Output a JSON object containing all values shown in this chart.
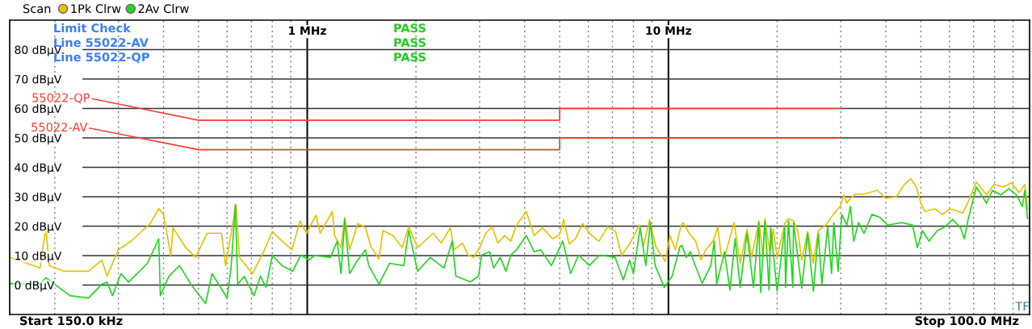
{
  "chart_data": {
    "type": "line",
    "legend_title": "Scan",
    "legend": "top left",
    "grid": true,
    "log": "x",
    "xlim": [
      0.15,
      100
    ],
    "ylim": [
      -10,
      90
    ],
    "xticks": [
      {
        "value": 0.2,
        "label": null
      },
      {
        "value": 0.3,
        "label": null
      },
      {
        "value": 0.4,
        "label": null
      },
      {
        "value": 0.5,
        "label": null
      },
      {
        "value": 0.6,
        "label": null
      },
      {
        "value": 0.7,
        "label": null
      },
      {
        "value": 0.8,
        "label": null
      },
      {
        "value": 0.9,
        "label": null
      },
      {
        "value": 1,
        "label": "1 MHz"
      },
      {
        "value": 2,
        "label": null
      },
      {
        "value": 3,
        "label": null
      },
      {
        "value": 4,
        "label": null
      },
      {
        "value": 5,
        "label": null
      },
      {
        "value": 6,
        "label": null
      },
      {
        "value": 7,
        "label": null
      },
      {
        "value": 8,
        "label": null
      },
      {
        "value": 9,
        "label": null
      },
      {
        "value": 10,
        "label": "10 MHz"
      },
      {
        "value": 20,
        "label": null
      },
      {
        "value": 30,
        "label": null
      },
      {
        "value": 40,
        "label": null
      },
      {
        "value": 50,
        "label": null
      },
      {
        "value": 60,
        "label": null
      },
      {
        "value": 70,
        "label": null
      },
      {
        "value": 80,
        "label": null
      },
      {
        "value": 90,
        "label": null
      }
    ],
    "yticks": [
      {
        "value": 0,
        "label": "0 dBµV"
      },
      {
        "value": 10,
        "label": "10 dBµV"
      },
      {
        "value": 20,
        "label": "20 dBµV"
      },
      {
        "value": 30,
        "label": "30 dBµV"
      },
      {
        "value": 40,
        "label": "40 dBµV"
      },
      {
        "value": 50,
        "label": "50 dBµV"
      },
      {
        "value": 60,
        "label": "60 dBµV"
      },
      {
        "value": 70,
        "label": "70 dBµV"
      },
      {
        "value": 80,
        "label": "80 dBµV"
      }
    ],
    "series": [
      {
        "name": "1Pk Clrw",
        "color": "#e6c300",
        "x": [
          0.15,
          0.182,
          0.189,
          0.193,
          0.212,
          0.248,
          0.27,
          0.279,
          0.3,
          0.326,
          0.368,
          0.388,
          0.4,
          0.419,
          0.425,
          0.459,
          0.491,
          0.528,
          0.579,
          0.594,
          0.635,
          0.649,
          0.705,
          0.757,
          0.8,
          0.852,
          0.907,
          0.955,
          0.995,
          1.058,
          1.086,
          1.173,
          1.191,
          1.24,
          1.27,
          1.31,
          1.38,
          1.45,
          1.5,
          1.58,
          1.62,
          1.73,
          1.83,
          1.91,
          2.02,
          2.23,
          2.35,
          2.49,
          2.55,
          2.69,
          2.79,
          2.89,
          3.01,
          3.12,
          3.25,
          3.37,
          3.52,
          3.66,
          3.8,
          4.04,
          4.25,
          4.48,
          4.78,
          5.0,
          5.13,
          5.31,
          5.53,
          5.79,
          6.04,
          6.42,
          6.79,
          7.14,
          7.42,
          7.81,
          8.31,
          8.52,
          8.87,
          9.23,
          9.8,
          10.1,
          10.45,
          10.85,
          11.0,
          11.4,
          11.9,
          12.3,
          12.7,
          13.3,
          13.7,
          14.0,
          14.3,
          15.2,
          15.8,
          16.5,
          17.0,
          17.8,
          18.3,
          18.5,
          19.1,
          19.5,
          20.0,
          21.0,
          21.5,
          22.2,
          22.8,
          23.4,
          24.3,
          25.2,
          26.0,
          27.3,
          28.6,
          29.9,
          30.6,
          31.2,
          31.9,
          33.0,
          34.8,
          37.9,
          39.9,
          42.8,
          45.0,
          46.9,
          48.6,
          50.0,
          51.3,
          54.6,
          57.4,
          60.3,
          65.4,
          68.3,
          71.2,
          76.0,
          79.7,
          84.5,
          89.0,
          93.6,
          97.0,
          98.7
        ],
        "values": [
          9.4,
          5.8,
          19.5,
          6.6,
          4.7,
          4.7,
          8.5,
          3,
          12,
          15,
          21,
          26,
          24,
          10,
          19.5,
          13,
          9.4,
          17.6,
          17.6,
          6.6,
          27.3,
          9.4,
          3.9,
          11.3,
          18.2,
          14.9,
          12,
          21.8,
          17.6,
          23.7,
          17.6,
          25,
          16.8,
          12.7,
          23,
          12,
          20.9,
          19.5,
          13,
          8.8,
          18.5,
          16.8,
          12.7,
          19.8,
          12.7,
          17.6,
          14.3,
          19.5,
          12,
          14.3,
          10.2,
          9.4,
          13,
          17.6,
          19.8,
          14.3,
          16.8,
          14.9,
          20.4,
          25,
          16.8,
          19.5,
          15.7,
          17.1,
          22.3,
          14,
          15.7,
          20.9,
          17.6,
          14.9,
          19.8,
          18.2,
          10,
          14,
          20.4,
          13,
          22.3,
          13,
          8,
          16.8,
          12,
          20.4,
          21.2,
          17.6,
          14.9,
          8.5,
          12,
          14.9,
          19.8,
          10.2,
          9.4,
          21.2,
          7.4,
          19,
          9.4,
          21.8,
          9.4,
          22.6,
          11.3,
          19,
          9.4,
          20.9,
          22.6,
          21.8,
          18.5,
          8.5,
          18.2,
          7.4,
          18.5,
          20.4,
          24,
          26.7,
          30.6,
          27.8,
          29.5,
          30.9,
          30.9,
          32.2,
          29.5,
          30,
          34.2,
          36.1,
          33.3,
          27.8,
          25,
          25.9,
          24,
          25.9,
          24.5,
          29.5,
          35,
          30.6,
          34.2,
          33.3,
          34.7,
          31.4,
          34.2,
          25.9
        ]
      },
      {
        "name": "2Av Clrw",
        "color": "#22d622",
        "x": [
          0.15,
          0.182,
          0.189,
          0.22,
          0.248,
          0.27,
          0.279,
          0.289,
          0.305,
          0.32,
          0.361,
          0.388,
          0.392,
          0.414,
          0.443,
          0.476,
          0.523,
          0.545,
          0.6,
          0.616,
          0.632,
          0.642,
          0.669,
          0.712,
          0.742,
          0.769,
          0.8,
          0.852,
          0.911,
          0.96,
          1.01,
          1.047,
          1.16,
          1.21,
          1.24,
          1.27,
          1.31,
          1.38,
          1.45,
          1.48,
          1.58,
          1.69,
          1.85,
          1.91,
          2.02,
          2.19,
          2.39,
          2.52,
          2.58,
          2.83,
          2.98,
          3.04,
          3.2,
          3.28,
          3.42,
          3.55,
          3.66,
          3.8,
          4.04,
          4.25,
          4.43,
          4.74,
          5.1,
          5.36,
          5.64,
          6.04,
          6.45,
          7.12,
          7.5,
          7.81,
          8.0,
          8.35,
          8.66,
          8.91,
          9.19,
          9.74,
          10.24,
          10.76,
          10.9,
          11.2,
          11.5,
          11.8,
          12.4,
          13.1,
          13.4,
          13.6,
          14.3,
          14.8,
          15.3,
          15.8,
          16.5,
          17.2,
          17.8,
          18.0,
          18.5,
          19.0,
          19.2,
          20.0,
          21.0,
          21.1,
          21.5,
          22.1,
          22.2,
          23.4,
          24.3,
          25.2,
          26.0,
          26.6,
          27.6,
          28.3,
          28.7,
          29.5,
          30.2,
          31.2,
          31.9,
          32.6,
          33.6,
          34.8,
          36.6,
          38.5,
          40.5,
          44.3,
          47.4,
          48.9,
          50.5,
          52.7,
          55.5,
          58.3,
          61.2,
          64.4,
          66.0,
          67.6,
          71.2,
          76.0,
          78.9,
          83.2,
          87.6,
          92.0,
          95.5,
          97.0,
          98.7
        ],
        "values": [
          0.5,
          0.3,
          2.5,
          -3.6,
          -4.4,
          0.3,
          1,
          -3.6,
          3.9,
          1,
          7.4,
          15.7,
          -3.6,
          3,
          6.6,
          0.3,
          -6.3,
          3.9,
          -4.4,
          6.6,
          27.3,
          0.3,
          3,
          -3.6,
          3,
          -0.8,
          10,
          6.6,
          4.7,
          10.2,
          8.5,
          10,
          9.4,
          14.9,
          3.9,
          22.3,
          3.9,
          8.5,
          12,
          6.6,
          0.3,
          7.4,
          6.6,
          18.5,
          4.7,
          9.4,
          5.8,
          14.9,
          3,
          1.1,
          3,
          10.2,
          11.3,
          5.8,
          9.4,
          4.7,
          10.2,
          12,
          16.8,
          11.3,
          12,
          6.6,
          14.9,
          3.9,
          10.2,
          6.6,
          10.2,
          9.4,
          1.8,
          8.5,
          3.9,
          19.5,
          6.6,
          21.2,
          6.6,
          -0.8,
          3,
          13,
          13.5,
          9.4,
          11.3,
          7.4,
          0.6,
          6.6,
          14.9,
          0.3,
          11.3,
          -1.7,
          15.7,
          -0.8,
          17.6,
          -0.8,
          21.2,
          -2.5,
          21.8,
          -1.7,
          19.5,
          -2.1,
          19.8,
          -0.8,
          21.8,
          -0.8,
          21.2,
          -1.1,
          17.6,
          -2.1,
          17.6,
          0.3,
          19.8,
          3.9,
          21.2,
          4.7,
          24,
          20.4,
          26.7,
          14.9,
          21.2,
          17.6,
          24,
          23,
          20.4,
          21.2,
          20.4,
          12.7,
          18.5,
          14.9,
          18.5,
          19.8,
          22.3,
          19.5,
          15.7,
          22.3,
          33.3,
          27.8,
          32.2,
          30.6,
          32.8,
          30.6,
          26.7,
          32.2,
          22.6
        ]
      },
      {
        "name": "55022-QP",
        "color": "#ff3b2f",
        "x": [
          0.254,
          0.5,
          5,
          5,
          30
        ],
        "values": [
          63.3,
          56,
          56,
          60,
          60
        ]
      },
      {
        "name": "55022-AV",
        "color": "#ff3b2f",
        "x": [
          0.25,
          0.5,
          5,
          5,
          30
        ],
        "values": [
          53.3,
          46,
          46,
          50,
          50
        ]
      }
    ],
    "annotations": [
      "Limit Check",
      "Line 55022-AV",
      "Line 55022-QP",
      "PASS",
      "PASS",
      "PASS",
      "Start 150.0 kHz",
      "Stop 100.0 MHz",
      "TF"
    ]
  }
}
